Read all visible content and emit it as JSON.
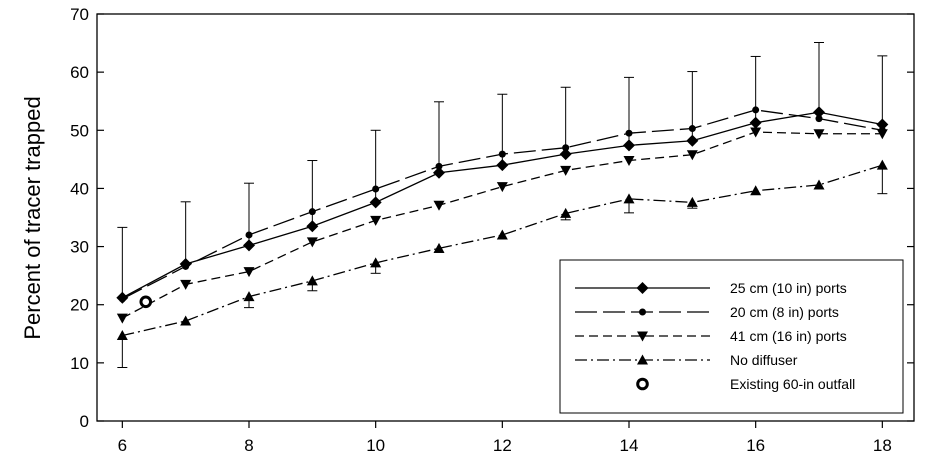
{
  "chart_data": {
    "type": "line",
    "title": "",
    "xlabel": "",
    "ylabel": "Percent of tracer trapped",
    "xlim": [
      5.6,
      18.5
    ],
    "ylim": [
      0,
      70
    ],
    "xticks": [
      6,
      8,
      10,
      12,
      14,
      16,
      18
    ],
    "yticks": [
      0,
      10,
      20,
      30,
      40,
      50,
      60,
      70
    ],
    "grid": false,
    "legend_position": "bottom-right",
    "series": [
      {
        "name": "25 cm (10 in) ports",
        "style": "solid",
        "marker": "diamond",
        "x": [
          6,
          7,
          8,
          9,
          10,
          11,
          12,
          13,
          14,
          15,
          16,
          17,
          18
        ],
        "y": [
          21.2,
          27.0,
          30.2,
          33.5,
          37.6,
          42.7,
          44.0,
          45.9,
          47.4,
          48.2,
          51.3,
          53.1,
          51.0
        ],
        "error_upper": [
          33.3,
          37.7,
          40.9,
          44.8,
          50.0,
          54.9,
          56.2,
          57.4,
          59.1,
          60.1,
          62.7,
          65.1,
          62.8
        ]
      },
      {
        "name": "20 cm (8 in) ports",
        "style": "longdash",
        "marker": "circle",
        "x": [
          6,
          7,
          8,
          9,
          10,
          11,
          12,
          13,
          14,
          15,
          16,
          17,
          18
        ],
        "y": [
          21.0,
          26.6,
          32.0,
          36.0,
          39.9,
          43.8,
          45.9,
          47.0,
          49.5,
          50.3,
          53.5,
          52.0,
          50.0
        ],
        "error_upper": []
      },
      {
        "name": "41 cm (16 in) ports",
        "style": "dash",
        "marker": "triangle-down",
        "x": [
          6,
          7,
          8,
          9,
          10,
          11,
          12,
          13,
          14,
          15,
          16,
          17,
          18
        ],
        "y": [
          17.7,
          23.5,
          25.7,
          30.8,
          34.5,
          37.1,
          40.3,
          43.1,
          44.8,
          45.8,
          49.7,
          49.4,
          49.4
        ],
        "error_upper": []
      },
      {
        "name": "No diffuser",
        "style": "dashdot",
        "marker": "triangle-up",
        "x": [
          6,
          7,
          8,
          9,
          10,
          11,
          12,
          13,
          14,
          15,
          16,
          17,
          18
        ],
        "y": [
          14.7,
          17.2,
          21.4,
          24.1,
          27.2,
          29.7,
          32.0,
          35.7,
          38.2,
          37.6,
          39.6,
          40.6,
          44.0
        ],
        "error_lower": [
          9.2,
          null,
          19.5,
          22.4,
          25.4,
          29.0,
          null,
          34.6,
          35.8,
          36.6,
          null,
          null,
          39.1
        ]
      },
      {
        "name": "Existing 60-in outfall",
        "style": "none",
        "marker": "open-circle",
        "x": [
          6.37
        ],
        "y": [
          20.5
        ]
      }
    ]
  },
  "colors": {
    "line": "#000000",
    "background": "#ffffff"
  }
}
